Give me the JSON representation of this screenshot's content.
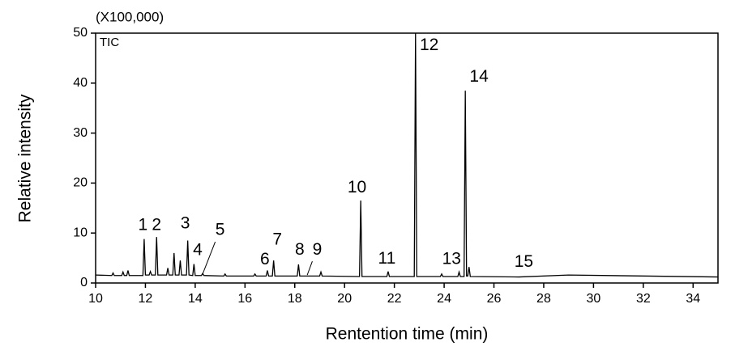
{
  "chart_data": {
    "type": "line",
    "unit_label": "(X100,000)",
    "xlabel": "Rentention time (min)",
    "ylabel": "Relative  intensity",
    "xlim": [
      10,
      35
    ],
    "ylim": [
      0,
      50
    ],
    "xticks": [
      10,
      12,
      14,
      16,
      18,
      20,
      22,
      24,
      26,
      28,
      30,
      32,
      34
    ],
    "yticks": [
      0,
      10,
      20,
      30,
      40,
      50
    ],
    "x": [
      10,
      10.65,
      10.7,
      10.75,
      11.05,
      11.1,
      11.15,
      11.25,
      11.3,
      11.35,
      11.9,
      11.95,
      12.0,
      12.15,
      12.2,
      12.25,
      12.4,
      12.45,
      12.5,
      12.85,
      12.9,
      12.95,
      13.1,
      13.15,
      13.2,
      13.35,
      13.4,
      13.45,
      13.65,
      13.7,
      13.75,
      13.9,
      13.95,
      14.0,
      14.25,
      14.3,
      14.35,
      15.15,
      15.2,
      15.25,
      16.35,
      16.4,
      16.45,
      16.85,
      16.9,
      16.95,
      17.1,
      17.15,
      17.2,
      18.1,
      18.15,
      18.2,
      19.0,
      19.05,
      19.1,
      20.6,
      20.65,
      20.7,
      21.7,
      21.75,
      21.8,
      22.8,
      22.85,
      22.9,
      23.85,
      23.9,
      23.95,
      24.55,
      24.6,
      24.65,
      24.8,
      24.85,
      24.9,
      24.95,
      25.0,
      25.05,
      27,
      29,
      35
    ],
    "series": [
      {
        "name": "TIC",
        "color": "#000000",
        "values": [
          1.6,
          1.5,
          2.0,
          1.5,
          1.5,
          2.2,
          1.5,
          1.5,
          2.5,
          1.5,
          1.5,
          8.8,
          1.6,
          1.6,
          2.3,
          1.6,
          1.6,
          9.2,
          1.6,
          1.6,
          3.0,
          1.6,
          1.6,
          6.0,
          1.6,
          1.6,
          4.5,
          1.6,
          1.6,
          8.5,
          1.6,
          1.5,
          3.8,
          1.5,
          1.5,
          1.9,
          1.5,
          1.4,
          1.8,
          1.4,
          1.4,
          1.8,
          1.4,
          1.4,
          2.5,
          1.4,
          1.4,
          4.5,
          1.4,
          1.4,
          3.7,
          1.4,
          1.4,
          2.2,
          1.4,
          1.3,
          16.5,
          1.3,
          1.3,
          2.3,
          1.3,
          1.3,
          50,
          1.3,
          1.3,
          1.8,
          1.3,
          1.3,
          2.2,
          1.3,
          1.3,
          38.5,
          1.4,
          1.4,
          3.2,
          1.3,
          1.2,
          1.6,
          1.2
        ]
      }
    ],
    "annotations": [
      {
        "text": "1",
        "x": 11.9,
        "y": 11.5
      },
      {
        "text": "2",
        "x": 12.45,
        "y": 11.5
      },
      {
        "text": "3",
        "x": 13.6,
        "y": 11.8
      },
      {
        "text": "4",
        "x": 14.1,
        "y": 6.5
      },
      {
        "text": "5",
        "x": 15.0,
        "y": 10.5,
        "arrow": [
          14.3,
          1.8
        ]
      },
      {
        "text": "6",
        "x": 16.8,
        "y": 4.6
      },
      {
        "text": "7",
        "x": 17.3,
        "y": 8.6
      },
      {
        "text": "8",
        "x": 18.2,
        "y": 6.6
      },
      {
        "text": "9",
        "x": 18.9,
        "y": 6.6,
        "arrow": [
          18.5,
          1.6
        ]
      },
      {
        "text": "10",
        "x": 20.5,
        "y": 19
      },
      {
        "text": "11",
        "x": 21.7,
        "y": 4.8
      },
      {
        "text": "12",
        "x": 23.4,
        "y": 47.5
      },
      {
        "text": "13",
        "x": 24.3,
        "y": 4.7
      },
      {
        "text": "14",
        "x": 25.4,
        "y": 41.2
      },
      {
        "text": "15",
        "x": 27.2,
        "y": 4.1
      }
    ]
  }
}
